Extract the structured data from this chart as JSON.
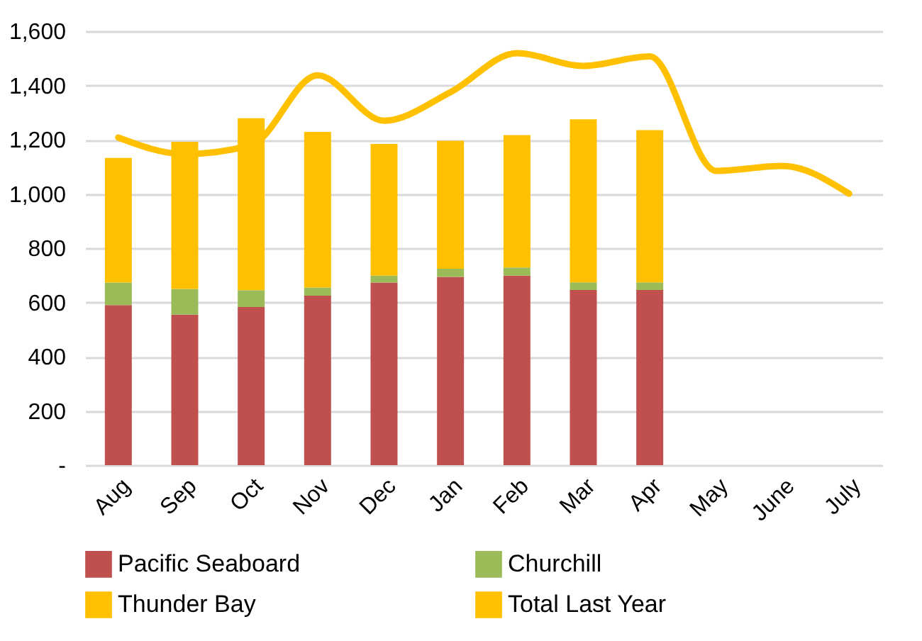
{
  "chart_data": {
    "type": "bar",
    "stacked": true,
    "categories": [
      "Aug",
      "Sep",
      "Oct",
      "Nov",
      "Dec",
      "Jan",
      "Feb",
      "Mar",
      "Apr",
      "May",
      "June",
      "July"
    ],
    "series": [
      {
        "name": "Pacific Seaboard",
        "color": "#c0504d",
        "values": [
          590,
          555,
          583,
          625,
          673,
          694,
          699,
          646,
          646,
          null,
          null,
          null
        ]
      },
      {
        "name": "Churchill",
        "color": "#9bbb59",
        "values": [
          83,
          95,
          62,
          30,
          26,
          30,
          30,
          28,
          28,
          null,
          null,
          null
        ]
      },
      {
        "name": "Thunder Bay",
        "color": "#ffc000",
        "values": [
          460,
          542,
          634,
          574,
          485,
          472,
          488,
          601,
          561,
          null,
          null,
          null
        ]
      },
      {
        "name": "Total Last Year",
        "color": "#ffc000",
        "type": "line",
        "values": [
          1208,
          1147,
          1180,
          1437,
          1270,
          1375,
          1519,
          1472,
          1507,
          1085,
          1103,
          1001
        ]
      }
    ],
    "ylim": [
      0,
      1600
    ],
    "yticks": [
      {
        "value": 0,
        "label": "-"
      },
      200,
      400,
      600,
      800,
      {
        "value": 1000,
        "label": "1,000"
      },
      {
        "value": 1200,
        "label": "1,200"
      },
      {
        "value": 1400,
        "label": "1,400"
      },
      {
        "value": 1600,
        "label": "1,600"
      }
    ],
    "grid": "y",
    "legend": "bottom"
  }
}
